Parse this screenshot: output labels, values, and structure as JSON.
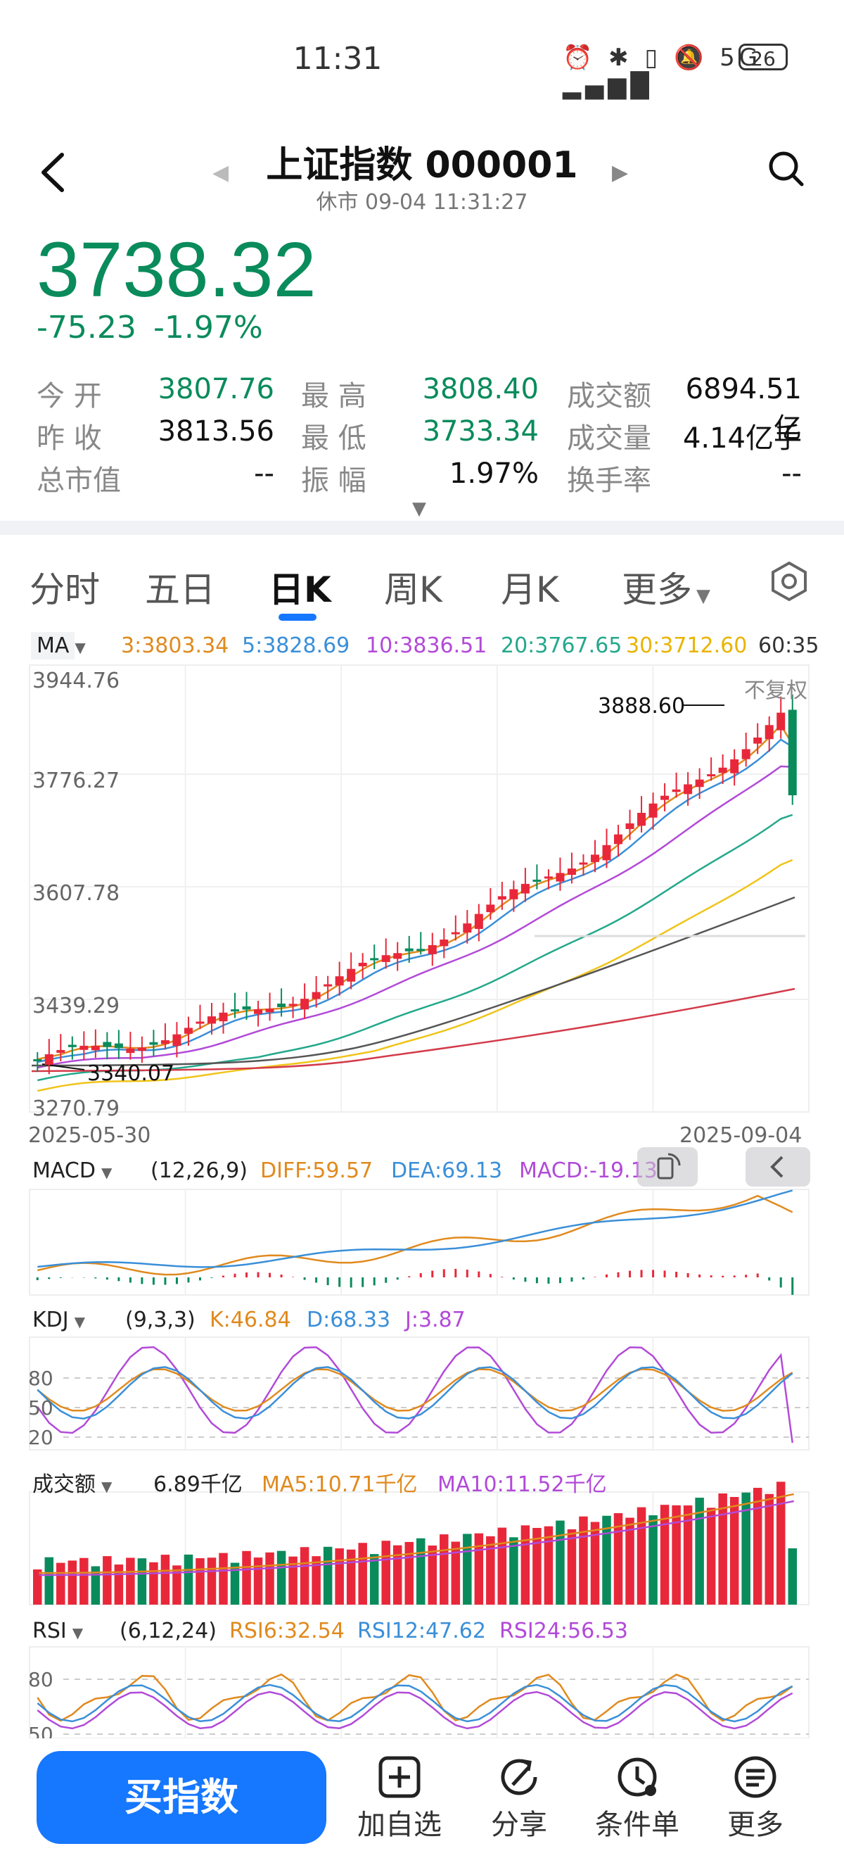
{
  "status": {
    "time": "11:31",
    "icons": "⏰ ✱ ▯ 🔕 5G ▂▄▆█",
    "battery": "26"
  },
  "header": {
    "title": "上证指数 000001",
    "subtitle": "休市 09-04 11:31:27"
  },
  "quote": {
    "price": "3738.32",
    "change": "-75.23",
    "change_pct": "-1.97%"
  },
  "stats": {
    "open_label": "今  开",
    "open": "3807.76",
    "high_label": "最  高",
    "high": "3808.40",
    "amount_label": "成交额",
    "amount": "6894.51亿",
    "prev_label": "昨  收",
    "prev": "3813.56",
    "low_label": "最  低",
    "low": "3733.34",
    "volume_label": "成交量",
    "volume": "4.14亿手",
    "mktcap_label": "总市值",
    "mktcap": "--",
    "amp_label": "振  幅",
    "amp": "1.97%",
    "turnover_label": "换手率",
    "turnover": "--"
  },
  "tabs": [
    "分时",
    "五日",
    "日K",
    "周K",
    "月K",
    "更多"
  ],
  "ma": {
    "label": "MA",
    "ma3": "3:3803.34",
    "ma5": "5:3828.69",
    "ma10": "10:3836.51",
    "ma20": "20:3767.65",
    "ma30": "30:3712.60",
    "ma60": "60:35"
  },
  "kline": {
    "y_ticks": [
      "3944.76",
      "3776.27",
      "3607.78",
      "3439.29",
      "3270.79"
    ],
    "high_mark": "3888.60",
    "low_mark": "3340.07",
    "adjust": "不复权",
    "date_start": "2025-05-30",
    "date_end": "2025-09-04"
  },
  "macd": {
    "label": "MACD",
    "params": "(12,26,9)",
    "diff": "DIFF:59.57",
    "dea": "DEA:69.13",
    "macd": "MACD:-19.13"
  },
  "kdj": {
    "label": "KDJ",
    "params": "(9,3,3)",
    "k": "K:46.84",
    "d": "D:68.33",
    "j": "J:3.87",
    "levels": [
      "80",
      "50",
      "20"
    ]
  },
  "amount": {
    "label": "成交额",
    "value": "6.89千亿",
    "ma5": "MA5:10.71千亿",
    "ma10": "MA10:11.52千亿"
  },
  "rsi": {
    "label": "RSI",
    "params": "(6,12,24)",
    "rsi6": "RSI6:32.54",
    "rsi12": "RSI12:47.62",
    "rsi24": "RSI24:56.53",
    "levels": [
      "80",
      "50"
    ]
  },
  "bottom": {
    "buy": "买指数",
    "add": "加自选",
    "share": "分享",
    "condition": "条件单",
    "more": "更多"
  },
  "colors": {
    "up": "#e8283a",
    "down": "#0a8b5c",
    "accent": "#1677ff",
    "ma3": "#e08a1e",
    "ma5": "#3a8fd8",
    "ma10": "#b24ad8",
    "ma20": "#23a88c",
    "ma30": "#f0c419",
    "ma60": "#555555",
    "ma120": "#d33b4a"
  }
}
